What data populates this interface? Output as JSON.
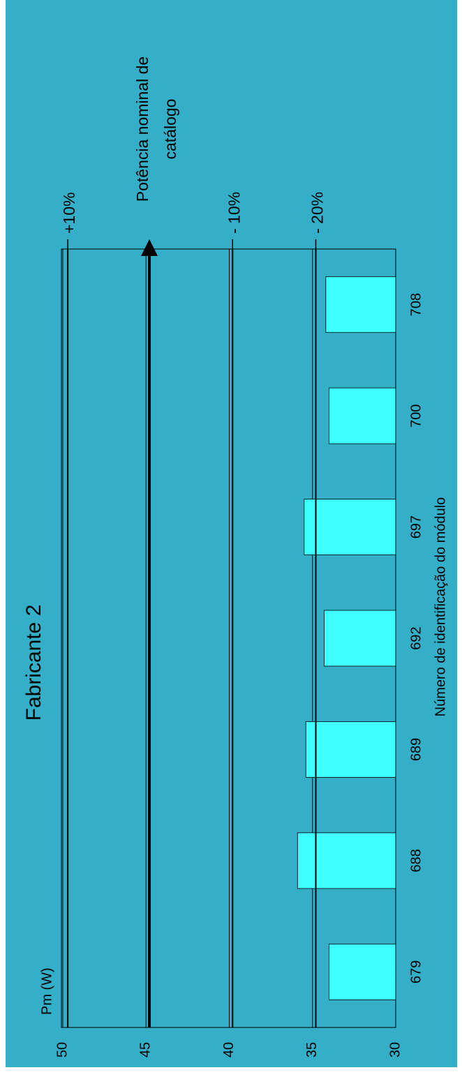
{
  "chart_data": {
    "type": "bar",
    "title": "Fabricante 2",
    "x_label": "Número de identificação do módulo",
    "y_label": "Pm (W)",
    "categories": [
      "679",
      "688",
      "689",
      "692",
      "697",
      "700",
      "708"
    ],
    "values": [
      34.0,
      35.9,
      35.4,
      34.3,
      35.5,
      34.0,
      34.2
    ],
    "color": "#40ffff",
    "background": "#35aec8",
    "ylim": [
      30,
      50
    ],
    "yticks": [
      50,
      45,
      40,
      35,
      30
    ],
    "grid": true,
    "reference_lines": [
      {
        "lines": [
          "+10%"
        ],
        "value": 49.7
      },
      {
        "lines": [
          "Potência nominal de",
          "catálogo"
        ],
        "value": 44.8,
        "arrow": true
      },
      {
        "lines": [
          "- 10%"
        ],
        "value": 39.8
      },
      {
        "lines": [
          "- 20%"
        ],
        "value": 34.8
      }
    ]
  }
}
